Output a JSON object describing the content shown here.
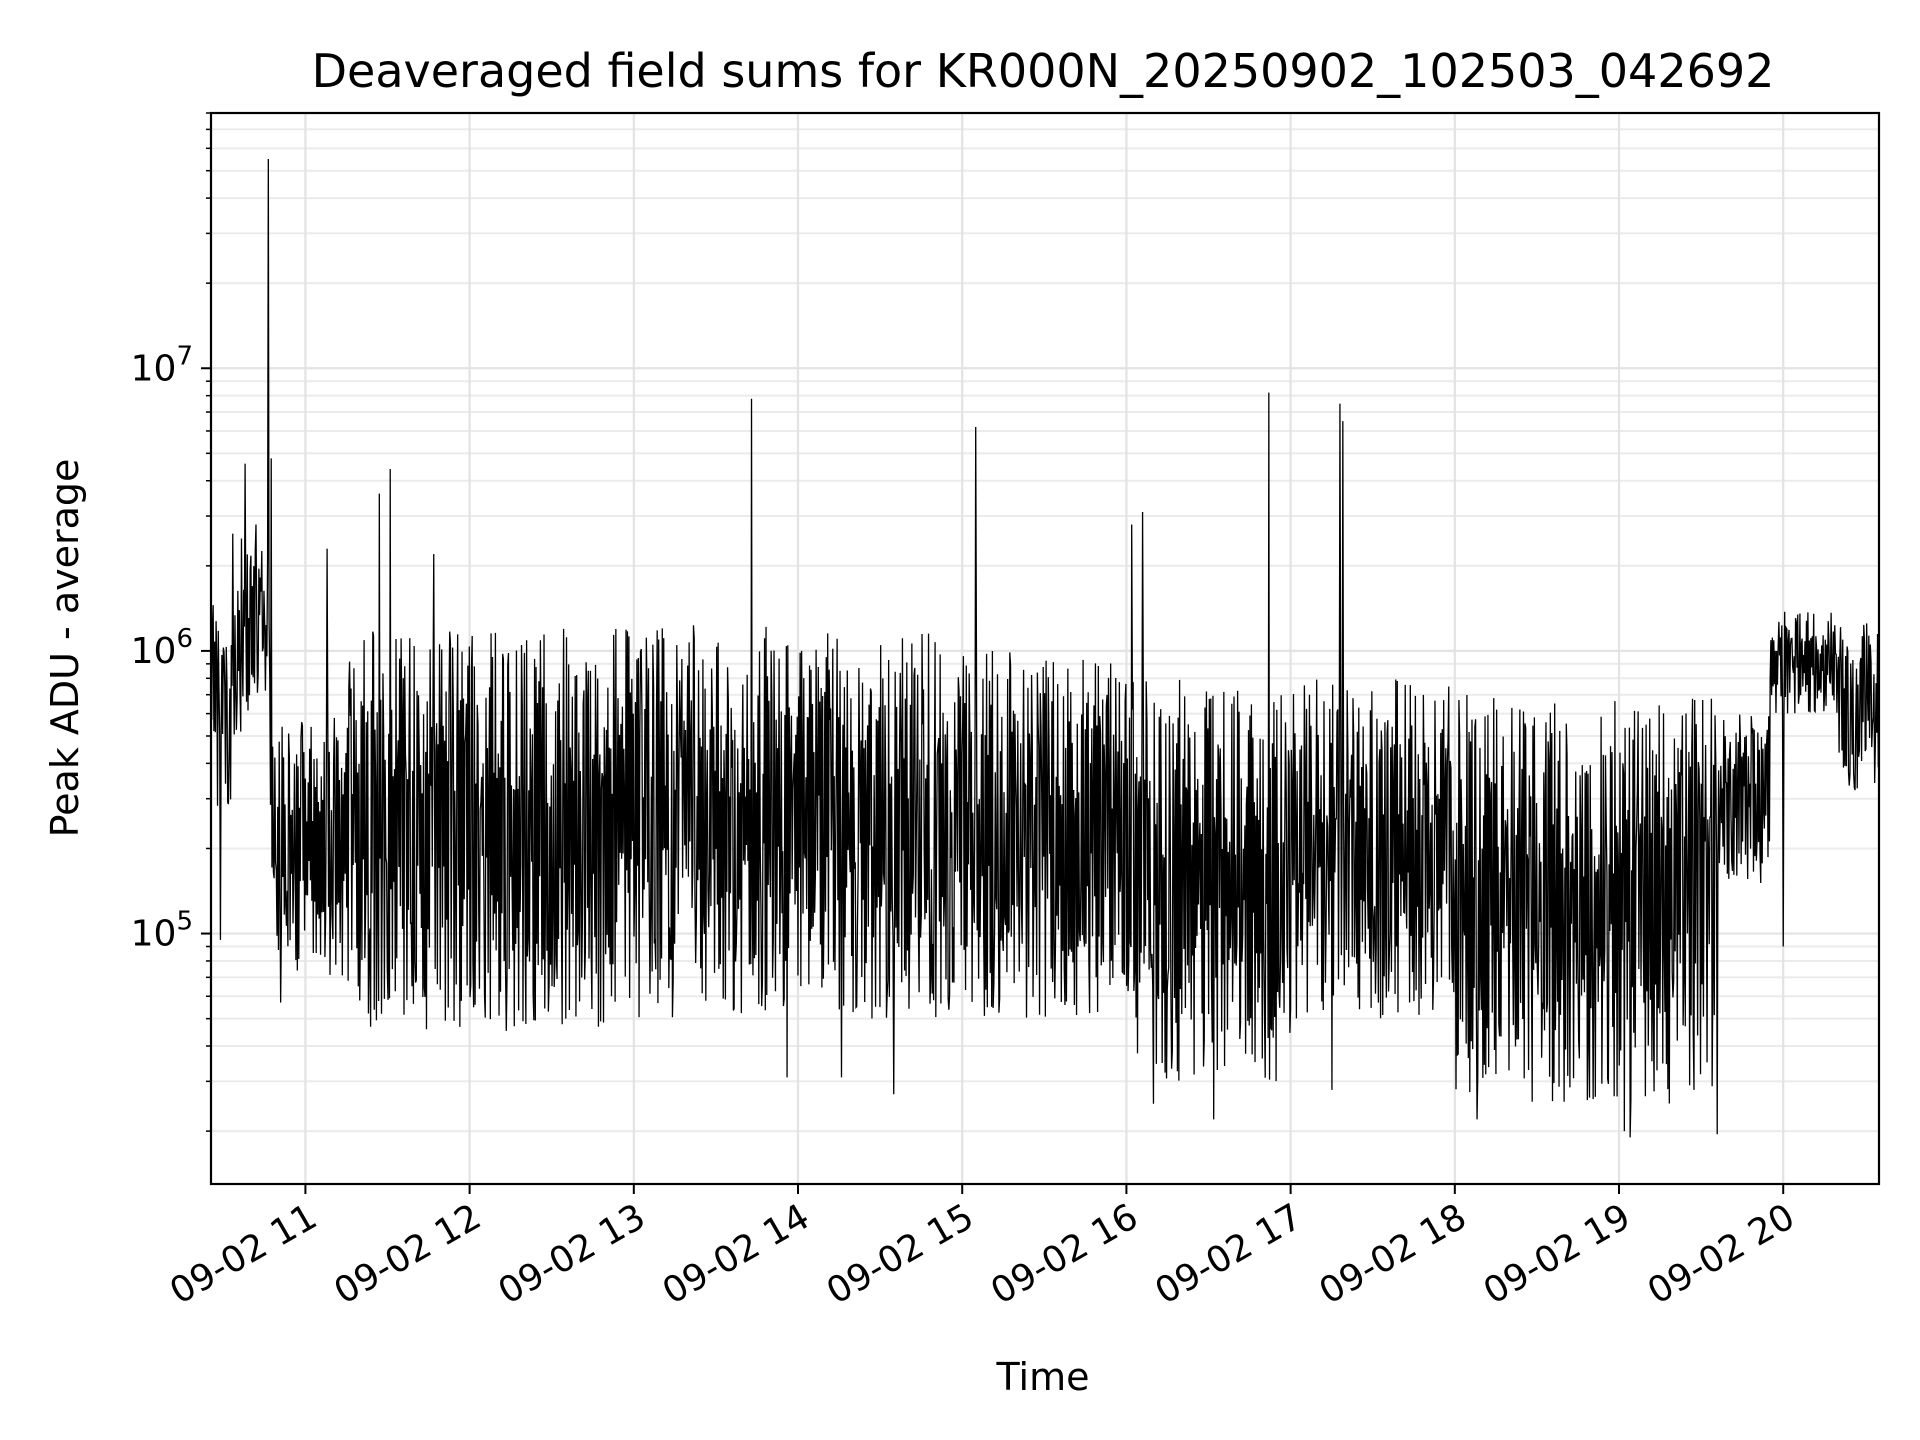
{
  "chart_data": {
    "type": "line",
    "title": "Deaveraged field sums for KR000N_20250902_102503_042692",
    "xlabel": "Time",
    "ylabel": "Peak ADU - average",
    "yscale": "log",
    "ylim": [
      13000,
      80000000
    ],
    "xlim": [
      "2025-09-02 10:25:30",
      "2025-09-02 20:35:00"
    ],
    "grid": true,
    "line_color": "#000000",
    "x_ticks": [
      {
        "t": "2025-09-02 11:00",
        "label": "09-02 11"
      },
      {
        "t": "2025-09-02 12:00",
        "label": "09-02 12"
      },
      {
        "t": "2025-09-02 13:00",
        "label": "09-02 13"
      },
      {
        "t": "2025-09-02 14:00",
        "label": "09-02 14"
      },
      {
        "t": "2025-09-02 15:00",
        "label": "09-02 15"
      },
      {
        "t": "2025-09-02 16:00",
        "label": "09-02 16"
      },
      {
        "t": "2025-09-02 17:00",
        "label": "09-02 17"
      },
      {
        "t": "2025-09-02 18:00",
        "label": "09-02 18"
      },
      {
        "t": "2025-09-02 19:00",
        "label": "09-02 19"
      },
      {
        "t": "2025-09-02 20:00",
        "label": "09-02 20"
      }
    ],
    "y_ticks": [
      {
        "value": 100000,
        "base": "10",
        "exp": "5"
      },
      {
        "value": 1000000,
        "base": "10",
        "exp": "6"
      },
      {
        "value": 10000000,
        "base": "10",
        "exp": "7"
      }
    ],
    "segments": [
      {
        "start": "2025-09-02 10:25:30",
        "end": "2025-09-02 10:33:00",
        "low": 280000,
        "high": 1500000
      },
      {
        "start": "2025-09-02 10:33:00",
        "end": "2025-09-02 10:47:00",
        "low": 500000,
        "high": 2500000
      },
      {
        "start": "2025-09-02 10:47:00",
        "end": "2025-09-02 11:15:00",
        "low": 70000,
        "high": 600000
      },
      {
        "start": "2025-09-02 11:15:00",
        "end": "2025-09-02 12:55:00",
        "low": 45000,
        "high": 1200000
      },
      {
        "start": "2025-09-02 12:55:00",
        "end": "2025-09-02 14:55:00",
        "low": 50000,
        "high": 1250000
      },
      {
        "start": "2025-09-02 14:55:00",
        "end": "2025-09-02 16:00:00",
        "low": 50000,
        "high": 1000000
      },
      {
        "start": "2025-09-02 16:00:00",
        "end": "2025-09-02 17:00:00",
        "low": 30000,
        "high": 800000
      },
      {
        "start": "2025-09-02 17:00:00",
        "end": "2025-09-02 18:00:00",
        "low": 50000,
        "high": 800000
      },
      {
        "start": "2025-09-02 18:00:00",
        "end": "2025-09-02 19:35:00",
        "low": 25000,
        "high": 700000
      },
      {
        "start": "2025-09-02 19:35:00",
        "end": "2025-09-02 19:55:00",
        "low": 150000,
        "high": 600000
      },
      {
        "start": "2025-09-02 19:55:00",
        "end": "2025-09-02 20:20:00",
        "low": 600000,
        "high": 1400000
      },
      {
        "start": "2025-09-02 20:20:00",
        "end": "2025-09-02 20:35:00",
        "low": 320000,
        "high": 1300000
      }
    ],
    "spikes": [
      {
        "t": "2025-09-02 10:33:30",
        "value": 2600000
      },
      {
        "t": "2025-09-02 10:38:00",
        "value": 4600000
      },
      {
        "t": "2025-09-02 10:42:00",
        "value": 2800000
      },
      {
        "t": "2025-09-02 10:46:30",
        "value": 55000000
      },
      {
        "t": "2025-09-02 10:47:30",
        "value": 4800000
      },
      {
        "t": "2025-09-02 11:08:00",
        "value": 2300000
      },
      {
        "t": "2025-09-02 11:27:00",
        "value": 3600000
      },
      {
        "t": "2025-09-02 11:31:00",
        "value": 4400000
      },
      {
        "t": "2025-09-02 11:47:00",
        "value": 2200000
      },
      {
        "t": "2025-09-02 13:43:00",
        "value": 7800000
      },
      {
        "t": "2025-09-02 15:05:00",
        "value": 6200000
      },
      {
        "t": "2025-09-02 16:02:00",
        "value": 2800000
      },
      {
        "t": "2025-09-02 16:06:00",
        "value": 3100000
      },
      {
        "t": "2025-09-02 16:52:00",
        "value": 8200000
      },
      {
        "t": "2025-09-02 17:18:00",
        "value": 7500000
      },
      {
        "t": "2025-09-02 17:19:00",
        "value": 6500000
      }
    ],
    "dips": [
      {
        "t": "2025-09-02 10:29:00",
        "value": 95000
      },
      {
        "t": "2025-09-02 10:51:00",
        "value": 57000
      },
      {
        "t": "2025-09-02 13:56:00",
        "value": 31000
      },
      {
        "t": "2025-09-02 14:16:00",
        "value": 31000
      },
      {
        "t": "2025-09-02 14:35:00",
        "value": 27000
      },
      {
        "t": "2025-09-02 16:10:00",
        "value": 25000
      },
      {
        "t": "2025-09-02 16:32:00",
        "value": 22000
      },
      {
        "t": "2025-09-02 17:15:00",
        "value": 28000
      },
      {
        "t": "2025-09-02 18:08:00",
        "value": 22000
      },
      {
        "t": "2025-09-02 19:02:00",
        "value": 20000
      },
      {
        "t": "2025-09-02 19:04:00",
        "value": 19000
      },
      {
        "t": "2025-09-02 19:36:00",
        "value": 19500
      },
      {
        "t": "2025-09-02 20:00:00",
        "value": 90000
      }
    ]
  }
}
